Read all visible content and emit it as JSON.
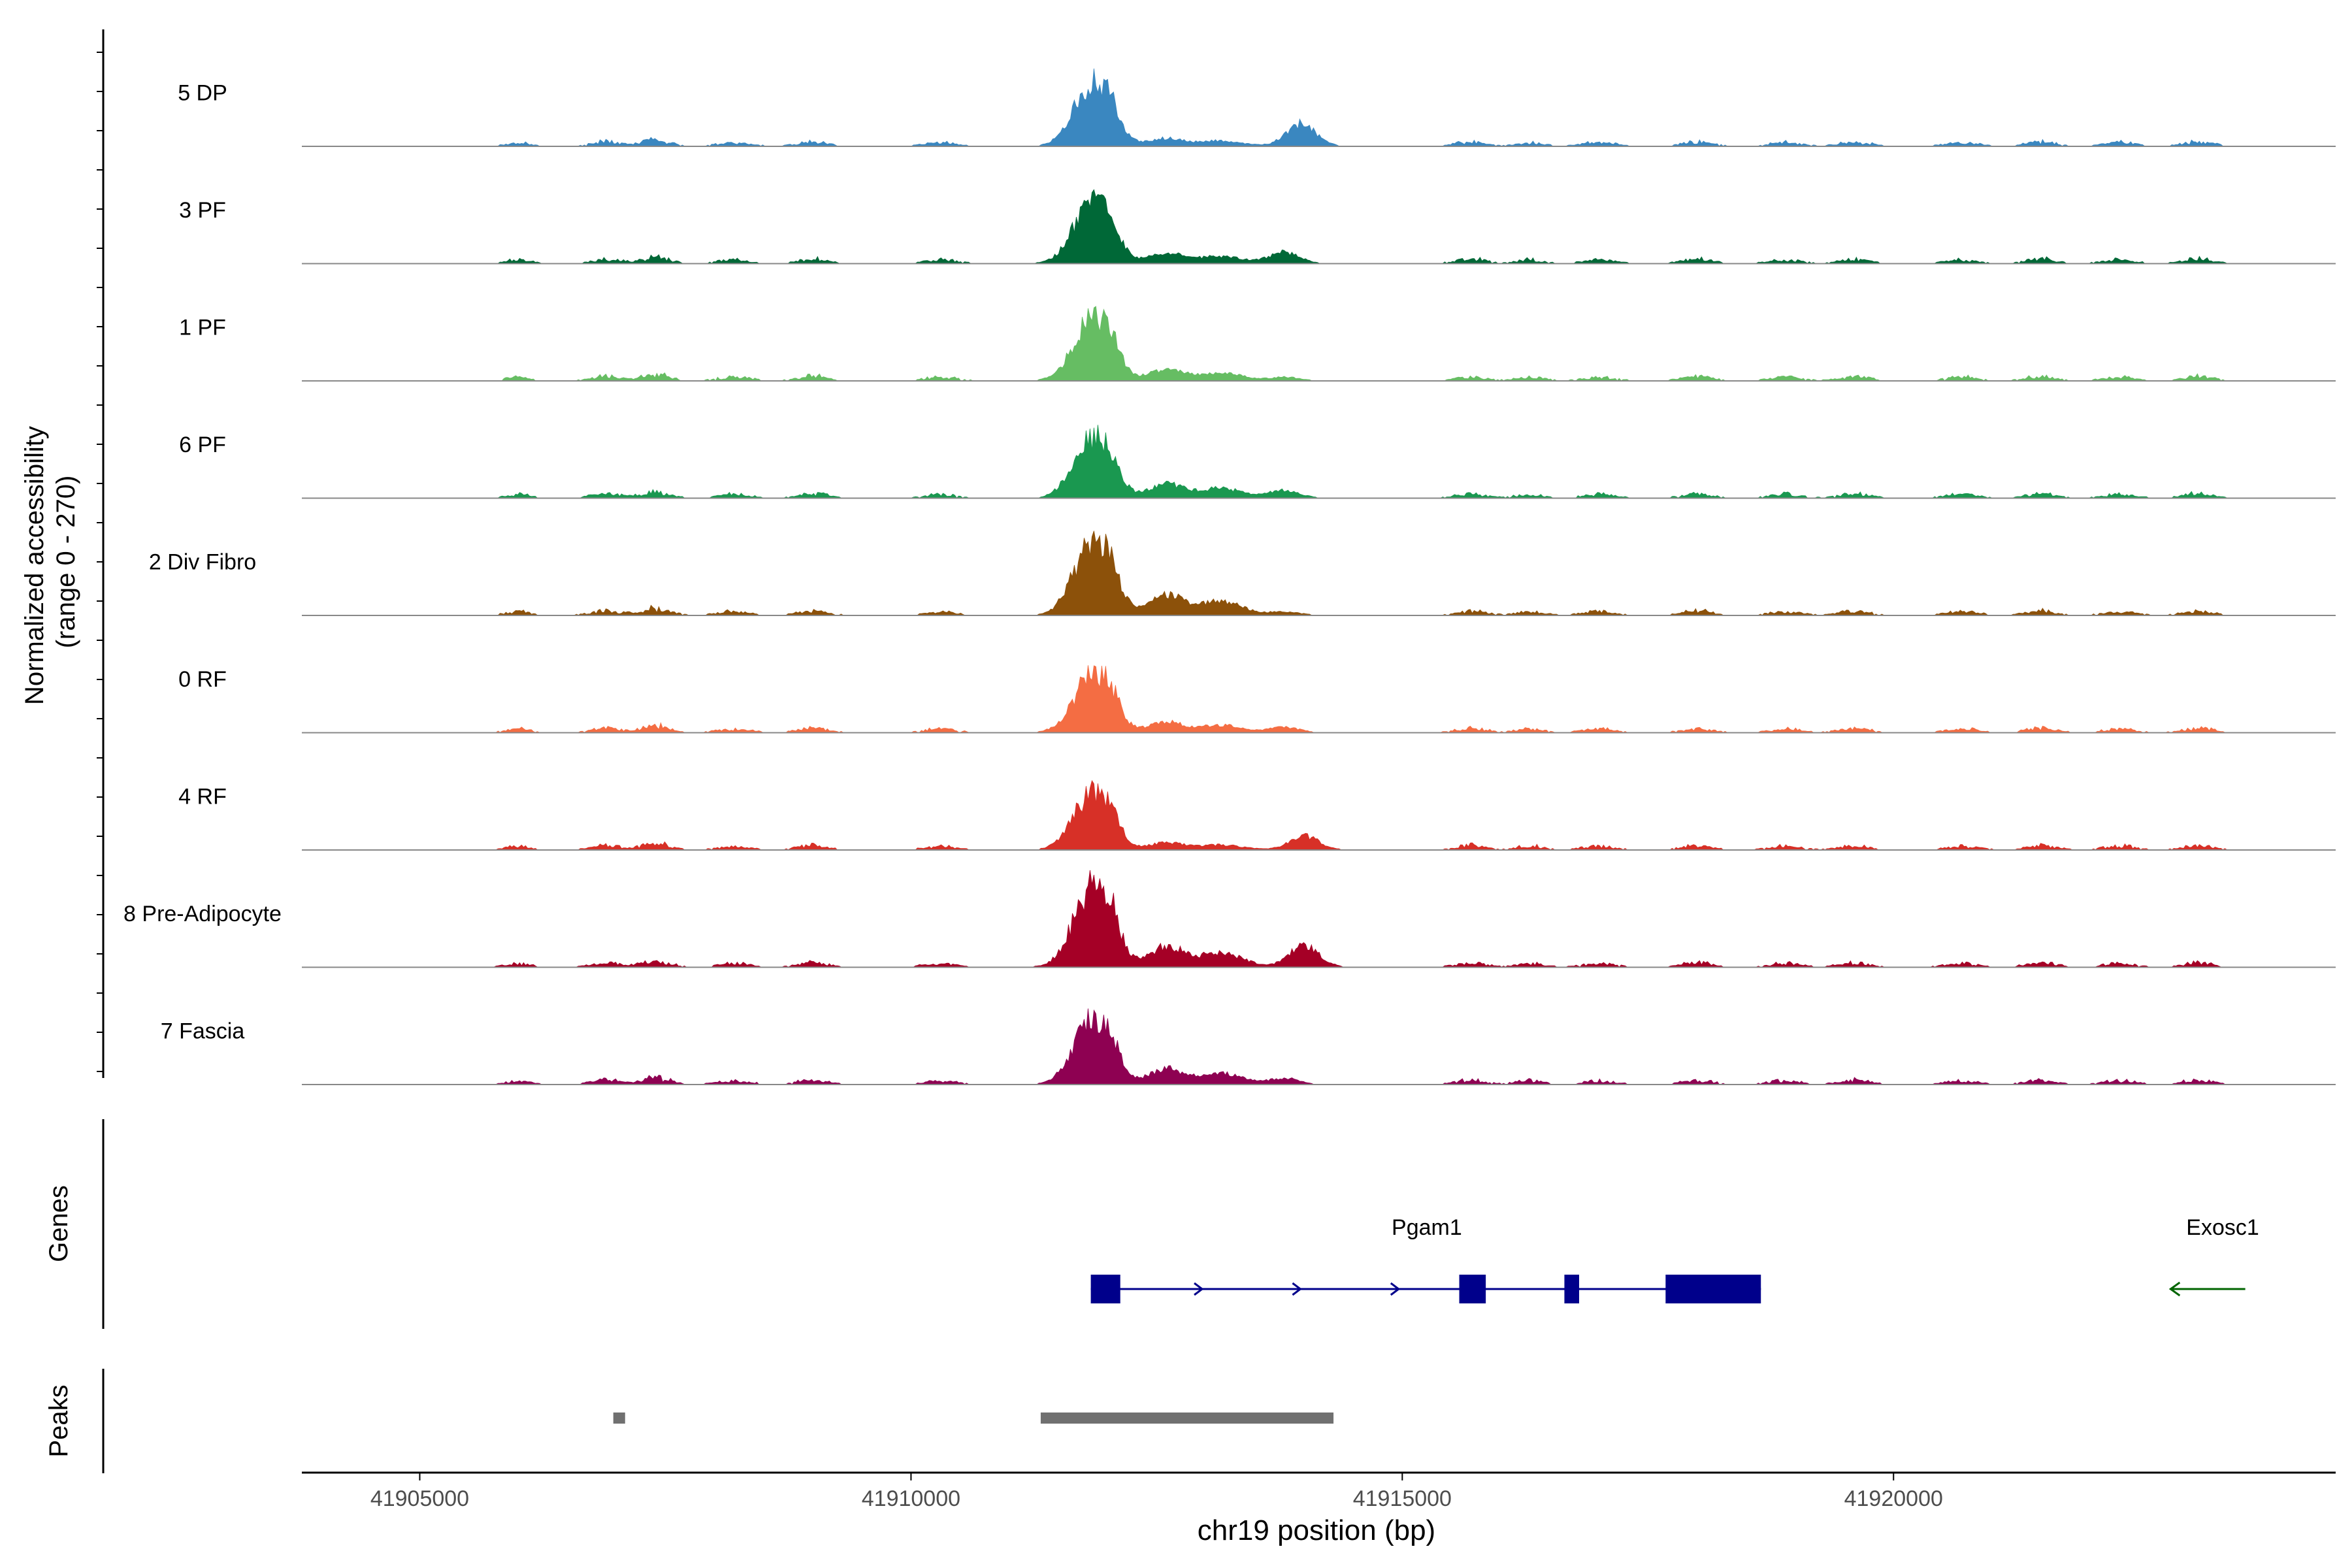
{
  "chart_data": {
    "type": "area",
    "title": "",
    "ylabel_accessibility": [
      "Normalized accessibility",
      "(range 0 - 270)"
    ],
    "y_range": [
      0,
      270
    ],
    "xlabel": "chr19 position (bp)",
    "xlim": [
      41903800,
      41924500
    ],
    "x_ticks": [
      41905000,
      41910000,
      41915000,
      41920000
    ],
    "x_tick_labels": [
      "41905000",
      "41910000",
      "41915000",
      "41920000"
    ],
    "track_labels": {
      "genes": "Genes",
      "peaks": "Peaks"
    },
    "background_bumps": [
      {
        "x": 41906000,
        "w": 120,
        "h": 0.05
      },
      {
        "x": 41906900,
        "w": 150,
        "h": 0.06
      },
      {
        "x": 41907400,
        "w": 140,
        "h": 0.09
      },
      {
        "x": 41908200,
        "w": 160,
        "h": 0.05
      },
      {
        "x": 41909000,
        "w": 150,
        "h": 0.06
      },
      {
        "x": 41910300,
        "w": 160,
        "h": 0.05
      },
      {
        "x": 41915700,
        "w": 150,
        "h": 0.06
      },
      {
        "x": 41916300,
        "w": 140,
        "h": 0.05
      },
      {
        "x": 41917000,
        "w": 160,
        "h": 0.05
      },
      {
        "x": 41918000,
        "w": 150,
        "h": 0.06
      },
      {
        "x": 41918900,
        "w": 160,
        "h": 0.05
      },
      {
        "x": 41919600,
        "w": 150,
        "h": 0.06
      },
      {
        "x": 41920700,
        "w": 160,
        "h": 0.05
      },
      {
        "x": 41921500,
        "w": 150,
        "h": 0.06
      },
      {
        "x": 41922300,
        "w": 160,
        "h": 0.05
      },
      {
        "x": 41923100,
        "w": 150,
        "h": 0.06
      }
    ],
    "series": [
      {
        "name": "5 DP",
        "color": "#3A87C0",
        "peak": 0.75,
        "second_x": 41913970,
        "second": 0.26,
        "third": 0.09
      },
      {
        "name": "3 PF",
        "color": "#006837",
        "peak": 0.72,
        "second_x": 41913800,
        "second": 0.13,
        "third": 0.12
      },
      {
        "name": "1 PF",
        "color": "#66BD63",
        "peak": 0.72,
        "second_x": 41913800,
        "second": 0.04,
        "third": 0.13
      },
      {
        "name": "6 PF",
        "color": "#1A9850",
        "peak": 0.7,
        "second_x": 41913800,
        "second": 0.09,
        "third": 0.16
      },
      {
        "name": "2 Div Fibro",
        "color": "#8C510A",
        "peak": 0.85,
        "second_x": 41913800,
        "second": 0.04,
        "third": 0.23
      },
      {
        "name": "0 RF",
        "color": "#F46D43",
        "peak": 0.68,
        "second_x": 41913800,
        "second": 0.06,
        "third": 0.12
      },
      {
        "name": "4 RF",
        "color": "#D73027",
        "peak": 0.68,
        "second_x": 41914000,
        "second": 0.16,
        "third": 0.08
      },
      {
        "name": "8 Pre-Adipocyte",
        "color": "#A50026",
        "peak": 0.96,
        "second_x": 41914000,
        "second": 0.26,
        "third": 0.24
      },
      {
        "name": "7 Fascia",
        "color": "#8E0152",
        "peak": 0.78,
        "second_x": 41913800,
        "second": 0.07,
        "third": 0.18
      }
    ],
    "genes": [
      {
        "name": "Pgam1",
        "strand": "+",
        "color": "#00008B",
        "start": 41911830,
        "end": 41918650,
        "label_x": 41915250,
        "exons": [
          [
            41911830,
            41912130
          ],
          [
            41915580,
            41915850
          ],
          [
            41916650,
            41916800
          ],
          [
            41917680,
            41918650
          ]
        ]
      },
      {
        "name": "Exosc1",
        "strand": "-",
        "color": "#006400",
        "start": 41922820,
        "end": 41923580,
        "label_x": 41923350,
        "exons": []
      }
    ],
    "peaks": [
      {
        "start": 41906970,
        "end": 41907090
      },
      {
        "start": 41911320,
        "end": 41914300
      }
    ]
  }
}
